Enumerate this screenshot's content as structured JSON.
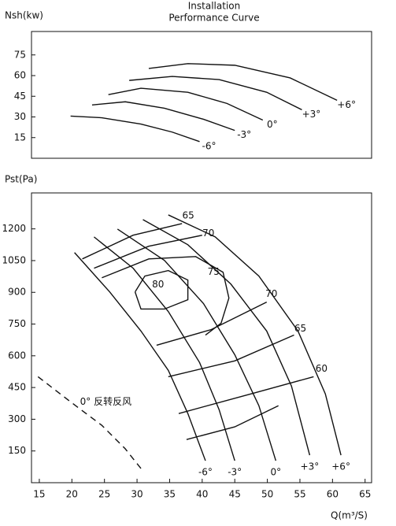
{
  "chart_data": [
    {
      "type": "line",
      "title": "Installation",
      "subtitle": "Performance Curve",
      "y_label": "Nsh(kw)",
      "xlim": [
        13.8,
        66
      ],
      "ylim": [
        0,
        92
      ],
      "yticks": [
        15,
        30,
        45,
        60,
        75
      ],
      "color": "#000000",
      "series": [
        {
          "name": "-6°",
          "x": [
            19.8,
            24.6,
            30.6,
            35.4,
            39.6
          ],
          "values": [
            30.6,
            29.4,
            24.8,
            19,
            12.1
          ]
        },
        {
          "name": "-3°",
          "x": [
            23.1,
            28.2,
            34.2,
            40.2,
            45
          ],
          "values": [
            38.7,
            41,
            36.3,
            28.3,
            20.2
          ]
        },
        {
          "name": "0°",
          "x": [
            25.6,
            30.6,
            37.8,
            43.8,
            49.3
          ],
          "values": [
            46.2,
            50.8,
            47.9,
            39.8,
            27.7
          ]
        },
        {
          "name": "+3°",
          "x": [
            28.8,
            35.4,
            42.6,
            49.9,
            55.3
          ],
          "values": [
            56.5,
            59.4,
            57.1,
            47.9,
            35.2
          ]
        },
        {
          "name": "+6°",
          "x": [
            31.8,
            37.8,
            45,
            53.5,
            60.7
          ],
          "values": [
            65.2,
            68.7,
            67.5,
            58.3,
            42.1
          ]
        }
      ]
    },
    {
      "type": "line",
      "y_label": "Pst(Pa)",
      "x_label": "Q(m³/S)",
      "xlim": [
        13.8,
        66
      ],
      "ylim": [
        0,
        1370
      ],
      "xticks": [
        15,
        20,
        25,
        30,
        35,
        40,
        45,
        50,
        55,
        60,
        65
      ],
      "yticks": [
        150,
        300,
        450,
        600,
        750,
        900,
        1050,
        1200
      ],
      "color": "#000000",
      "series": [
        {
          "name": "-6°",
          "x": [
            20.4,
            25.8,
            30.6,
            34.8,
            37.8,
            40.5
          ],
          "values": [
            1088,
            902,
            717,
            531,
            327,
            104
          ]
        },
        {
          "name": "-3°",
          "x": [
            23.4,
            29.4,
            34.8,
            39.6,
            42.6,
            45
          ],
          "values": [
            1162,
            1014,
            809,
            568,
            345,
            104
          ]
        },
        {
          "name": "0°",
          "x": [
            27,
            34.2,
            40.2,
            45,
            48.7,
            51.3
          ],
          "values": [
            1199,
            1051,
            847,
            605,
            364,
            104
          ]
        },
        {
          "name": "+3°",
          "x": [
            30.9,
            37.8,
            44.4,
            49.9,
            53.7,
            56.5
          ],
          "values": [
            1244,
            1125,
            939,
            717,
            457,
            130
          ]
        },
        {
          "name": "+6°",
          "x": [
            34.8,
            42,
            48.7,
            54.7,
            58.9,
            61.3
          ],
          "values": [
            1266,
            1162,
            977,
            717,
            420,
            130
          ]
        },
        {
          "name": "0°  反转反风",
          "dashed": true,
          "x": [
            14.8,
            19.8,
            24.6,
            28.2,
            30.6
          ],
          "values": [
            501,
            382,
            271,
            160,
            67
          ]
        }
      ],
      "contours": [
        {
          "label": "65",
          "x": [
            21.6,
            29.4,
            36.9
          ],
          "values": [
            1058,
            1170,
            1225
          ]
        },
        {
          "label": "70",
          "x": [
            23.4,
            31.8,
            40
          ],
          "values": [
            1014,
            1118,
            1170
          ]
        },
        {
          "label": "75",
          "x": [
            24.6,
            31.8,
            39,
            43.2,
            44.1,
            42.9,
            40.5
          ],
          "values": [
            969,
            1058,
            1069,
            995,
            873,
            754,
            698
          ]
        },
        {
          "label": "80",
          "x": [
            29.7,
            31.2,
            34.8,
            37.8,
            37.8,
            34.2,
            30.6,
            29.7
          ],
          "values": [
            902,
            977,
            1003,
            958,
            865,
            821,
            821,
            902
          ]
        },
        {
          "label": "70",
          "x": [
            33,
            41.4,
            49.9
          ],
          "values": [
            650,
            724,
            854
          ]
        },
        {
          "label": "65",
          "x": [
            34.8,
            45,
            54.1
          ],
          "values": [
            501,
            576,
            698
          ]
        },
        {
          "label": "60",
          "x": [
            36.4,
            47.5,
            57.1
          ],
          "values": [
            327,
            420,
            501
          ]
        },
        {
          "x": [
            37.6,
            45,
            51.7
          ],
          "values": [
            204,
            264,
            364
          ]
        }
      ]
    }
  ]
}
